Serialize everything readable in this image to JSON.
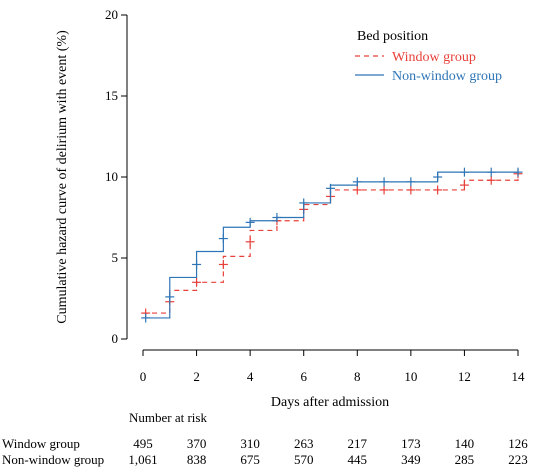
{
  "chart_data": {
    "type": "line",
    "step": true,
    "ylabel": "Cumulative hazard curve of delirium with event (%)",
    "xlabel": "Days after admission",
    "xlim": [
      0,
      14
    ],
    "ylim": [
      0,
      20
    ],
    "xticks": [
      0,
      2,
      4,
      6,
      8,
      10,
      12,
      14
    ],
    "yticks": [
      0,
      5,
      10,
      15,
      20
    ],
    "grid": false,
    "legend": {
      "title": "Bed position",
      "placement": "top-right"
    },
    "colors": {
      "window": "#e8403a",
      "nonwindow": "#2e75b6"
    },
    "series": [
      {
        "name": "Window group",
        "line_style": "dashed",
        "steps": [
          [
            0,
            1.6
          ],
          [
            1,
            3.0
          ],
          [
            2,
            3.5
          ],
          [
            3,
            5.1
          ],
          [
            4,
            6.7
          ],
          [
            5,
            7.3
          ],
          [
            6,
            8.3
          ],
          [
            7,
            9.2
          ],
          [
            8,
            9.2
          ],
          [
            9,
            9.2
          ],
          [
            10,
            9.2
          ],
          [
            11,
            9.2
          ],
          [
            12,
            9.8
          ],
          [
            13,
            9.8
          ],
          [
            14,
            10.0
          ]
        ],
        "censor_marks": [
          [
            0.1,
            1.6
          ],
          [
            1.0,
            2.3
          ],
          [
            2.0,
            3.5
          ],
          [
            3.0,
            4.6
          ],
          [
            4.0,
            6.0
          ],
          [
            5.0,
            7.3
          ],
          [
            6.0,
            8.0
          ],
          [
            7.0,
            8.8
          ],
          [
            8.0,
            9.2
          ],
          [
            9.0,
            9.2
          ],
          [
            10.0,
            9.2
          ],
          [
            11.0,
            9.2
          ],
          [
            12.0,
            9.5
          ],
          [
            13.0,
            9.8
          ],
          [
            14.0,
            10.2
          ]
        ]
      },
      {
        "name": "Non-window group",
        "line_style": "solid",
        "steps": [
          [
            0,
            1.3
          ],
          [
            1,
            3.8
          ],
          [
            2,
            5.4
          ],
          [
            3,
            6.9
          ],
          [
            4,
            7.3
          ],
          [
            5,
            7.5
          ],
          [
            6,
            8.4
          ],
          [
            7,
            9.5
          ],
          [
            8,
            9.7
          ],
          [
            9,
            9.7
          ],
          [
            10,
            9.7
          ],
          [
            11,
            10.3
          ],
          [
            12,
            10.3
          ],
          [
            13,
            10.3
          ],
          [
            14,
            10.3
          ]
        ],
        "censor_marks": [
          [
            0.1,
            1.3
          ],
          [
            1.0,
            2.6
          ],
          [
            2.0,
            4.6
          ],
          [
            3.0,
            6.2
          ],
          [
            4.0,
            7.2
          ],
          [
            5.0,
            7.5
          ],
          [
            6.0,
            8.4
          ],
          [
            7.0,
            9.3
          ],
          [
            8.0,
            9.7
          ],
          [
            9.0,
            9.7
          ],
          [
            10.0,
            9.7
          ],
          [
            11.0,
            10.0
          ],
          [
            12.0,
            10.3
          ],
          [
            13.0,
            10.3
          ],
          [
            14.0,
            10.3
          ]
        ]
      }
    ],
    "risk_table": {
      "title": "Number at risk",
      "rows": [
        {
          "label": "Window group",
          "values": [
            "495",
            "370",
            "310",
            "263",
            "217",
            "173",
            "140",
            "126"
          ]
        },
        {
          "label": "Non-window group",
          "values": [
            "1,061",
            "838",
            "675",
            "570",
            "445",
            "349",
            "285",
            "223"
          ]
        }
      ]
    }
  }
}
